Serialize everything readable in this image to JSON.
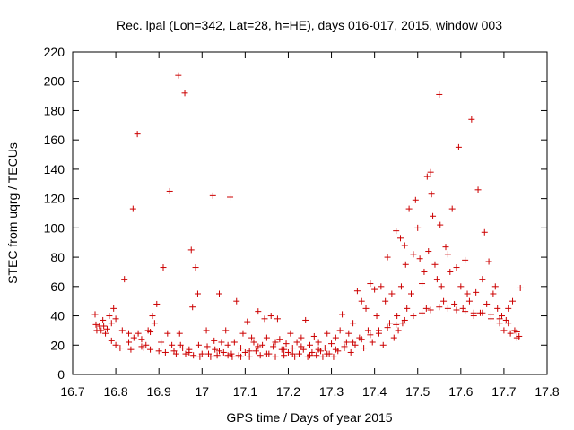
{
  "chart_data": {
    "type": "scatter",
    "title": "Rec. lpal (Lon=342, Lat=28, h=HE), days 016-017, 2015, window 003",
    "xlabel": "GPS time / Days of year 2015",
    "ylabel": "STEC from uqrg / TECUs",
    "xlim": [
      16.7,
      17.8
    ],
    "ylim": [
      0,
      220
    ],
    "xticks": [
      "16.7",
      "16.8",
      "16.9",
      "17",
      "17.1",
      "17.2",
      "17.3",
      "17.4",
      "17.5",
      "17.6",
      "17.7",
      "17.8"
    ],
    "yticks": [
      "0",
      "20",
      "40",
      "60",
      "80",
      "100",
      "120",
      "140",
      "160",
      "180",
      "200",
      "220"
    ],
    "grid": false,
    "legend": "none",
    "marker": "plus",
    "color": "#cc0000",
    "points": [
      [
        16.752,
        41
      ],
      [
        16.754,
        34
      ],
      [
        16.756,
        30
      ],
      [
        16.762,
        33
      ],
      [
        16.766,
        30
      ],
      [
        16.772,
        33
      ],
      [
        16.776,
        28
      ],
      [
        16.785,
        40
      ],
      [
        16.79,
        35
      ],
      [
        16.795,
        45
      ],
      [
        16.79,
        23
      ],
      [
        16.8,
        20
      ],
      [
        16.81,
        18
      ],
      [
        16.815,
        30
      ],
      [
        16.82,
        65
      ],
      [
        16.83,
        28
      ],
      [
        16.835,
        17
      ],
      [
        16.84,
        113
      ],
      [
        16.842,
        25
      ],
      [
        16.85,
        164
      ],
      [
        16.852,
        28
      ],
      [
        16.86,
        24
      ],
      [
        16.865,
        18
      ],
      [
        16.87,
        20
      ],
      [
        16.875,
        30
      ],
      [
        16.88,
        17
      ],
      [
        16.885,
        40
      ],
      [
        16.89,
        35
      ],
      [
        16.895,
        48
      ],
      [
        16.9,
        16
      ],
      [
        16.905,
        22
      ],
      [
        16.91,
        73
      ],
      [
        16.915,
        15
      ],
      [
        16.92,
        28
      ],
      [
        16.925,
        125
      ],
      [
        16.93,
        20
      ],
      [
        16.935,
        16
      ],
      [
        16.94,
        14
      ],
      [
        16.945,
        204
      ],
      [
        16.948,
        28
      ],
      [
        16.955,
        18
      ],
      [
        16.96,
        192
      ],
      [
        16.962,
        14
      ],
      [
        16.97,
        15
      ],
      [
        16.975,
        85
      ],
      [
        16.978,
        46
      ],
      [
        16.98,
        13
      ],
      [
        16.985,
        73
      ],
      [
        16.99,
        55
      ],
      [
        16.992,
        20
      ],
      [
        16.995,
        12
      ],
      [
        17.01,
        30
      ],
      [
        17.012,
        19
      ],
      [
        17.015,
        14
      ],
      [
        17.02,
        12
      ],
      [
        17.025,
        122
      ],
      [
        17.028,
        23
      ],
      [
        17.03,
        17
      ],
      [
        17.035,
        13
      ],
      [
        17.04,
        55
      ],
      [
        17.045,
        22
      ],
      [
        17.05,
        15
      ],
      [
        17.055,
        30
      ],
      [
        17.06,
        20
      ],
      [
        17.065,
        121
      ],
      [
        17.068,
        14
      ],
      [
        17.07,
        12
      ],
      [
        17.075,
        22
      ],
      [
        17.08,
        50
      ],
      [
        17.085,
        13
      ],
      [
        17.09,
        18
      ],
      [
        17.095,
        28
      ],
      [
        17.1,
        15
      ],
      [
        17.105,
        36
      ],
      [
        17.11,
        12
      ],
      [
        17.115,
        25
      ],
      [
        17.12,
        22
      ],
      [
        17.125,
        16
      ],
      [
        17.13,
        43
      ],
      [
        17.135,
        13
      ],
      [
        17.14,
        20
      ],
      [
        17.145,
        38
      ],
      [
        17.15,
        25
      ],
      [
        17.155,
        14
      ],
      [
        17.16,
        40
      ],
      [
        17.165,
        19
      ],
      [
        17.17,
        12
      ],
      [
        17.175,
        38
      ],
      [
        17.18,
        24
      ],
      [
        17.185,
        17
      ],
      [
        17.19,
        13
      ],
      [
        17.195,
        21
      ],
      [
        17.2,
        15
      ],
      [
        17.205,
        28
      ],
      [
        17.21,
        18
      ],
      [
        17.215,
        12
      ],
      [
        17.22,
        22
      ],
      [
        17.225,
        14
      ],
      [
        17.23,
        25
      ],
      [
        17.235,
        17
      ],
      [
        17.24,
        37
      ],
      [
        17.245,
        12
      ],
      [
        17.25,
        20
      ],
      [
        17.255,
        15
      ],
      [
        17.26,
        26
      ],
      [
        17.265,
        13
      ],
      [
        17.27,
        22
      ],
      [
        17.275,
        16
      ],
      [
        17.28,
        12
      ],
      [
        17.285,
        18
      ],
      [
        17.29,
        28
      ],
      [
        17.295,
        14
      ],
      [
        17.3,
        21
      ],
      [
        17.305,
        12
      ],
      [
        17.31,
        25
      ],
      [
        17.315,
        16
      ],
      [
        17.32,
        30
      ],
      [
        17.325,
        41
      ],
      [
        17.33,
        18
      ],
      [
        17.335,
        22
      ],
      [
        17.34,
        28
      ],
      [
        17.345,
        15
      ],
      [
        17.35,
        35
      ],
      [
        17.355,
        20
      ],
      [
        17.36,
        57
      ],
      [
        17.365,
        25
      ],
      [
        17.37,
        50
      ],
      [
        17.375,
        18
      ],
      [
        17.38,
        45
      ],
      [
        17.385,
        30
      ],
      [
        17.39,
        62
      ],
      [
        17.395,
        22
      ],
      [
        17.4,
        58
      ],
      [
        17.405,
        40
      ],
      [
        17.41,
        28
      ],
      [
        17.415,
        60
      ],
      [
        17.42,
        20
      ],
      [
        17.425,
        50
      ],
      [
        17.43,
        80
      ],
      [
        17.435,
        35
      ],
      [
        17.44,
        55
      ],
      [
        17.445,
        25
      ],
      [
        17.45,
        98
      ],
      [
        17.452,
        40
      ],
      [
        17.455,
        30
      ],
      [
        17.46,
        93
      ],
      [
        17.462,
        60
      ],
      [
        17.465,
        35
      ],
      [
        17.47,
        88
      ],
      [
        17.472,
        75
      ],
      [
        17.475,
        45
      ],
      [
        17.48,
        113
      ],
      [
        17.485,
        55
      ],
      [
        17.49,
        82
      ],
      [
        17.495,
        119
      ],
      [
        17.5,
        100
      ],
      [
        17.505,
        79
      ],
      [
        17.51,
        62
      ],
      [
        17.515,
        70
      ],
      [
        17.52,
        45
      ],
      [
        17.522,
        135
      ],
      [
        17.525,
        84
      ],
      [
        17.53,
        138
      ],
      [
        17.532,
        123
      ],
      [
        17.535,
        108
      ],
      [
        17.54,
        75
      ],
      [
        17.545,
        65
      ],
      [
        17.55,
        191
      ],
      [
        17.552,
        102
      ],
      [
        17.555,
        60
      ],
      [
        17.56,
        50
      ],
      [
        17.565,
        87
      ],
      [
        17.57,
        82
      ],
      [
        17.575,
        70
      ],
      [
        17.58,
        113
      ],
      [
        17.585,
        48
      ],
      [
        17.59,
        73
      ],
      [
        17.595,
        155
      ],
      [
        17.6,
        60
      ],
      [
        17.605,
        45
      ],
      [
        17.61,
        78
      ],
      [
        17.615,
        55
      ],
      [
        17.62,
        50
      ],
      [
        17.625,
        174
      ],
      [
        17.63,
        40
      ],
      [
        17.635,
        56
      ],
      [
        17.64,
        126
      ],
      [
        17.645,
        42
      ],
      [
        17.65,
        65
      ],
      [
        17.655,
        97
      ],
      [
        17.66,
        48
      ],
      [
        17.665,
        77
      ],
      [
        17.67,
        38
      ],
      [
        17.675,
        55
      ],
      [
        17.68,
        60
      ],
      [
        17.685,
        45
      ],
      [
        17.69,
        35
      ],
      [
        17.695,
        40
      ],
      [
        17.7,
        30
      ],
      [
        17.705,
        37
      ],
      [
        17.71,
        45
      ],
      [
        17.715,
        28
      ],
      [
        17.72,
        50
      ],
      [
        17.725,
        30
      ],
      [
        17.73,
        25
      ],
      [
        17.735,
        26
      ],
      [
        17.738,
        59
      ],
      [
        16.77,
        37
      ],
      [
        16.78,
        31
      ],
      [
        16.8,
        38
      ],
      [
        16.83,
        22
      ],
      [
        16.86,
        19
      ],
      [
        16.88,
        29
      ],
      [
        16.95,
        20
      ],
      [
        16.97,
        17
      ],
      [
        17.0,
        14
      ],
      [
        17.04,
        16
      ],
      [
        17.06,
        13
      ],
      [
        17.09,
        12
      ],
      [
        17.11,
        16
      ],
      [
        17.13,
        19
      ],
      [
        17.15,
        14
      ],
      [
        17.17,
        22
      ],
      [
        17.19,
        17
      ],
      [
        17.21,
        14
      ],
      [
        17.23,
        19
      ],
      [
        17.25,
        13
      ],
      [
        17.27,
        17
      ],
      [
        17.29,
        14
      ],
      [
        17.31,
        17
      ],
      [
        17.33,
        19
      ],
      [
        17.35,
        22
      ],
      [
        17.37,
        24
      ],
      [
        17.39,
        27
      ],
      [
        17.41,
        30
      ],
      [
        17.43,
        32
      ],
      [
        17.45,
        34
      ],
      [
        17.47,
        37
      ],
      [
        17.49,
        40
      ],
      [
        17.51,
        42
      ],
      [
        17.53,
        44
      ],
      [
        17.55,
        46
      ],
      [
        17.57,
        45
      ],
      [
        17.59,
        44
      ],
      [
        17.61,
        43
      ],
      [
        17.63,
        42
      ],
      [
        17.65,
        42
      ],
      [
        17.67,
        41
      ],
      [
        17.69,
        38
      ],
      [
        17.71,
        35
      ],
      [
        17.73,
        29
      ]
    ]
  }
}
